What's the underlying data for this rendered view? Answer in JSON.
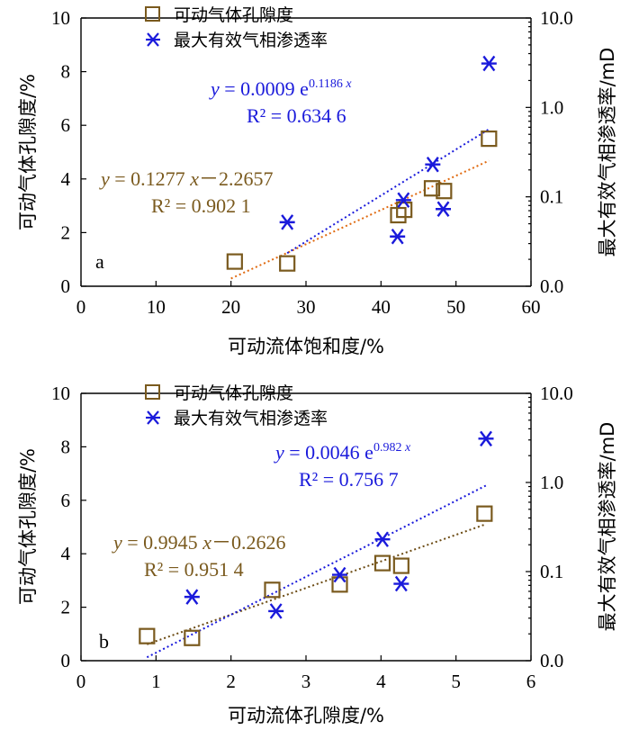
{
  "chart_data": [
    {
      "type": "scatter",
      "panel_label": "a",
      "xlabel": "可动流体饱和度/%",
      "ylabel_left": "可动气体孔隙度/%",
      "ylabel_right": "最大有效气相渗透率/mD",
      "xlim": [
        0,
        60
      ],
      "ylim_left": [
        0,
        10
      ],
      "ylim_right_log": [
        0.01,
        10
      ],
      "x_ticks": [
        0,
        10,
        20,
        30,
        40,
        50,
        60
      ],
      "y_left_ticks": [
        0,
        2,
        4,
        6,
        8,
        10
      ],
      "y_right_ticks": [
        {
          "value": 0.01,
          "label": "0.0"
        },
        {
          "value": 0.1,
          "label": "0.1"
        },
        {
          "value": 1,
          "label": "1.0"
        },
        {
          "value": 10,
          "label": "10.0"
        }
      ],
      "legend": [
        {
          "label": "可动气体孔隙度",
          "marker": "square",
          "color": "#7a5a1e"
        },
        {
          "label": "最大有效气相渗透率",
          "marker": "asterisk",
          "color": "#1a1adb"
        }
      ],
      "series": [
        {
          "name": "可动气体孔隙度",
          "axis": "left",
          "color": "#7a5a1e",
          "points": [
            [
              20.5,
              0.92
            ],
            [
              27.5,
              0.85
            ],
            [
              42.3,
              2.65
            ],
            [
              43.1,
              2.85
            ],
            [
              46.8,
              3.65
            ],
            [
              48.4,
              3.55
            ],
            [
              54.4,
              5.5
            ]
          ]
        },
        {
          "name": "最大有效气相渗透率",
          "axis": "right",
          "color": "#1a1adb",
          "points": [
            [
              27.5,
              0.052
            ],
            [
              42.2,
              0.036
            ],
            [
              43.0,
              0.092
            ],
            [
              46.9,
              0.23
            ],
            [
              48.3,
              0.073
            ],
            [
              54.4,
              3.1
            ]
          ]
        }
      ],
      "trendlines": [
        {
          "axis": "left",
          "model": "linear",
          "a": 0.1277,
          "b": -2.2657,
          "x_range": [
            20.0,
            54.4
          ],
          "color": "#e06a10"
        },
        {
          "axis": "right",
          "model": "exp",
          "a": 0.0009,
          "b": 0.1186,
          "x_range": [
            27.5,
            54.4
          ],
          "color": "#1a1adb"
        }
      ],
      "equations": [
        {
          "color": "#7a5a1e",
          "eq_pre": "y",
          "eq_body": " = 0.1277 ",
          "eq_var": "x",
          "eq_tail": "－2.2657",
          "r2_label": "R² = 0.902 1"
        },
        {
          "color": "#1a1adb",
          "eq_pre": "y",
          "eq_body": " = 0.0009 e",
          "eq_sup": "0.1186 ",
          "eq_sup_var": "x",
          "r2_label": "R² = 0.634 6"
        }
      ]
    },
    {
      "type": "scatter",
      "panel_label": "b",
      "xlabel": "可动流体孔隙度/%",
      "ylabel_left": "可动气体孔隙度/%",
      "ylabel_right": "最大有效气相渗透率/mD",
      "xlim": [
        0,
        6
      ],
      "ylim_left": [
        0,
        10
      ],
      "ylim_right_log": [
        0.01,
        10
      ],
      "x_ticks": [
        0,
        1,
        2,
        3,
        4,
        5,
        6
      ],
      "y_left_ticks": [
        0,
        2,
        4,
        6,
        8,
        10
      ],
      "y_right_ticks": [
        {
          "value": 0.01,
          "label": "0.0"
        },
        {
          "value": 0.1,
          "label": "0.1"
        },
        {
          "value": 1,
          "label": "1.0"
        },
        {
          "value": 10,
          "label": "10.0"
        }
      ],
      "legend": [
        {
          "label": "可动气体孔隙度",
          "marker": "square",
          "color": "#7a5a1e"
        },
        {
          "label": "最大有效气相渗透率",
          "marker": "asterisk",
          "color": "#1a1adb"
        }
      ],
      "series": [
        {
          "name": "可动气体孔隙度",
          "axis": "left",
          "color": "#7a5a1e",
          "points": [
            [
              0.88,
              0.92
            ],
            [
              1.48,
              0.85
            ],
            [
              2.55,
              2.65
            ],
            [
              3.45,
              2.85
            ],
            [
              4.02,
              3.65
            ],
            [
              4.27,
              3.55
            ],
            [
              5.38,
              5.5
            ]
          ]
        },
        {
          "name": "最大有效气相渗透率",
          "axis": "right",
          "color": "#1a1adb",
          "points": [
            [
              1.48,
              0.052
            ],
            [
              2.6,
              0.036
            ],
            [
              3.45,
              0.092
            ],
            [
              4.02,
              0.23
            ],
            [
              4.27,
              0.073
            ],
            [
              5.4,
              3.1
            ]
          ]
        }
      ],
      "trendlines": [
        {
          "axis": "left",
          "model": "linear",
          "a": 0.9945,
          "b": -0.2626,
          "x_range": [
            0.88,
            5.38
          ],
          "color": "#6b4a12"
        },
        {
          "axis": "right",
          "model": "exp",
          "a": 0.0046,
          "b": 0.982,
          "x_range": [
            0.88,
            5.4
          ],
          "color": "#1a1adb"
        }
      ],
      "equations": [
        {
          "color": "#7a5a1e",
          "eq_pre": "y",
          "eq_body": " = 0.9945 ",
          "eq_var": "x",
          "eq_tail": "－0.2626",
          "r2_label": "R² = 0.951 4"
        },
        {
          "color": "#1a1adb",
          "eq_pre": "y",
          "eq_body": " = 0.0046 e",
          "eq_sup": "0.982 ",
          "eq_sup_var": "x",
          "r2_label": "R² = 0.756 7"
        }
      ]
    }
  ]
}
